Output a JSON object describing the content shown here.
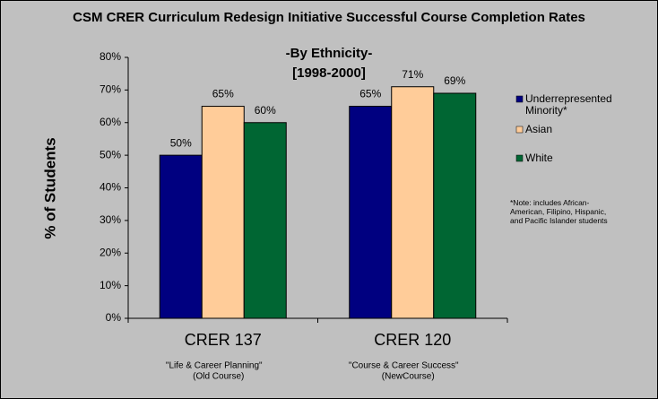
{
  "chart_data": {
    "type": "bar",
    "title": "CSM CRER Curriculum Redesign Initiative Successful Course Completion Rates",
    "subtitle": "-By Ethnicity-",
    "period": "[1998-2000]",
    "y_label": "% of Students",
    "categories": [
      "CRER 137",
      "CRER 120"
    ],
    "category_notes": [
      [
        "\"Life & Career Planning\"",
        "(Old Course)"
      ],
      [
        "\"Course & Career Success\"",
        "(NewCourse)"
      ]
    ],
    "series": [
      {
        "name": "Underrepresented Minority*",
        "color": "#000080",
        "values": [
          50,
          65
        ],
        "value_labels": [
          "50%",
          "65%"
        ]
      },
      {
        "name": "Asian",
        "color": "#ffcc99",
        "values": [
          65,
          71
        ],
        "value_labels": [
          "65%",
          "71%"
        ]
      },
      {
        "name": "White",
        "color": "#006633",
        "values": [
          60,
          69
        ],
        "value_labels": [
          "60%",
          "69%"
        ]
      }
    ],
    "ylim": [
      0,
      80
    ],
    "yticks": [
      {
        "value": 0,
        "label": "0%"
      },
      {
        "value": 10,
        "label": "10%"
      },
      {
        "value": 20,
        "label": "20%"
      },
      {
        "value": 30,
        "label": "30%"
      },
      {
        "value": 40,
        "label": "40%"
      },
      {
        "value": 50,
        "label": "50%"
      },
      {
        "value": 60,
        "label": "60%"
      },
      {
        "value": 70,
        "label": "70%"
      },
      {
        "value": 80,
        "label": "80%"
      }
    ],
    "grid": false,
    "legend": "right",
    "annotation": "*Note: includes African-American, Filipino, Hispanic, and Pacific Islander students"
  }
}
